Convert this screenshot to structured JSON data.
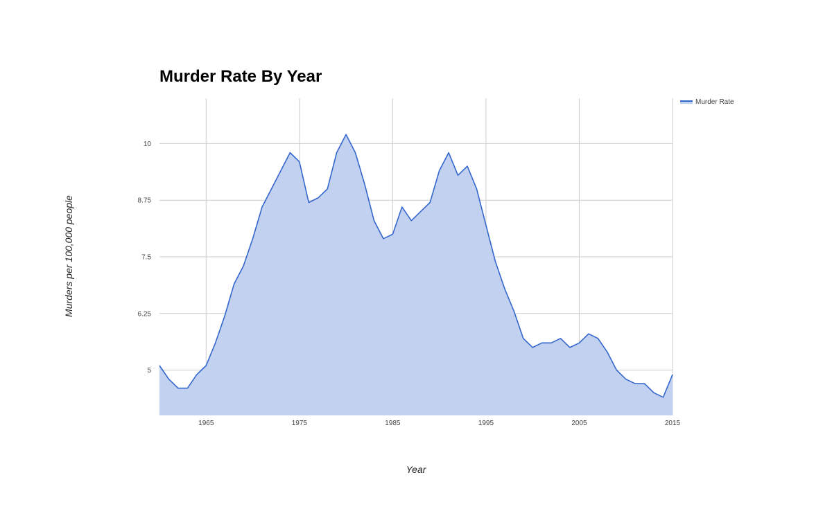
{
  "chart_data": {
    "type": "area",
    "title": "Murder Rate By Year",
    "xlabel": "Year",
    "ylabel": "Murders per 100,000 people",
    "xlim": [
      1960,
      2015
    ],
    "ylim": [
      4.0,
      11.0
    ],
    "x_ticks": [
      "1965",
      "1975",
      "1985",
      "1995",
      "2005",
      "2015"
    ],
    "y_ticks": [
      "5",
      "6.25",
      "7.5",
      "8.75",
      "10"
    ],
    "grid": true,
    "legend": "top-right",
    "series": [
      {
        "name": "Murder Rate",
        "color": "#3366cc",
        "fill": "#c3d1f0",
        "x": [
          1960,
          1961,
          1962,
          1963,
          1964,
          1965,
          1966,
          1967,
          1968,
          1969,
          1970,
          1971,
          1972,
          1973,
          1974,
          1975,
          1976,
          1977,
          1978,
          1979,
          1980,
          1981,
          1982,
          1983,
          1984,
          1985,
          1986,
          1987,
          1988,
          1989,
          1990,
          1991,
          1992,
          1993,
          1994,
          1995,
          1996,
          1997,
          1998,
          1999,
          2000,
          2001,
          2002,
          2003,
          2004,
          2005,
          2006,
          2007,
          2008,
          2009,
          2010,
          2011,
          2012,
          2013,
          2014,
          2015
        ],
        "values": [
          5.1,
          4.8,
          4.6,
          4.6,
          4.9,
          5.1,
          5.6,
          6.2,
          6.9,
          7.3,
          7.9,
          8.6,
          9.0,
          9.4,
          9.8,
          9.6,
          8.7,
          8.8,
          9.0,
          9.8,
          10.2,
          9.8,
          9.1,
          8.3,
          7.9,
          8.0,
          8.6,
          8.3,
          8.5,
          8.7,
          9.4,
          9.8,
          9.3,
          9.5,
          9.0,
          8.2,
          7.4,
          6.8,
          6.3,
          5.7,
          5.5,
          5.6,
          5.6,
          5.7,
          5.5,
          5.6,
          5.8,
          5.7,
          5.4,
          5.0,
          4.8,
          4.7,
          4.7,
          4.5,
          4.4,
          4.9
        ]
      }
    ]
  }
}
